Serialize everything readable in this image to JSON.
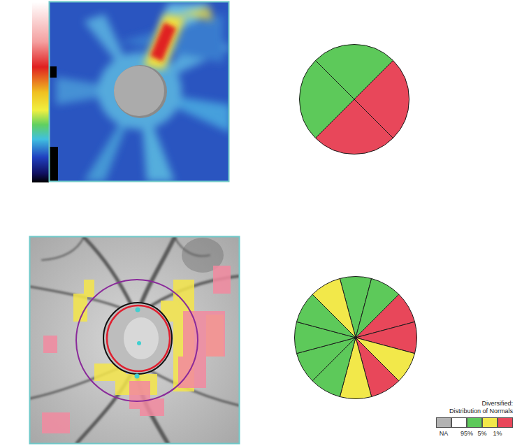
{
  "chart_data": [
    {
      "type": "pie",
      "values": [
        90,
        90,
        90,
        90
      ],
      "colors": [
        "#e8475a",
        "#e8475a",
        "#5dc95a",
        "#5dc95a"
      ]
    },
    {
      "type": "pie",
      "values": [
        30,
        30,
        30,
        30,
        30,
        30,
        30,
        30,
        30,
        30,
        30,
        30
      ],
      "colors": [
        "#5dc95a",
        "#5dc95a",
        "#e8475a",
        "#e8475a",
        "#f2e84a",
        "#e8475a",
        "#f2e84a",
        "#5dc95a",
        "#5dc95a",
        "#5dc95a",
        "#5dc95a",
        "#f2e84a"
      ]
    }
  ],
  "legend_scale": {
    "title": [
      "Diversified:",
      "Distribution of Normals"
    ],
    "colors": [
      "#b3b3b3",
      "#ffffff",
      "#5dc95a",
      "#f2e84a",
      "#e8475a"
    ],
    "labels": [
      "NA",
      "95%",
      "5%",
      "1%"
    ]
  }
}
